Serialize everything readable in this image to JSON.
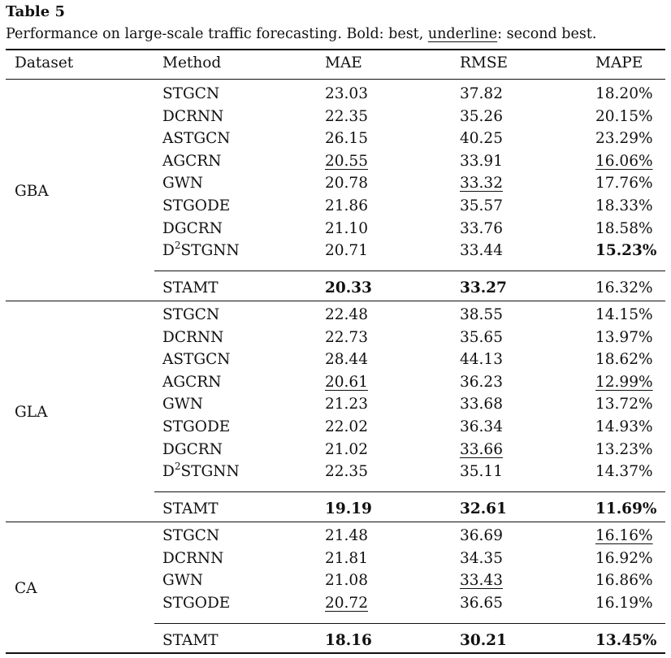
{
  "table": {
    "title": "Table 5",
    "caption_pre": "Performance on large-scale traffic forecasting. Bold: best, ",
    "caption_underline_word": "underline",
    "caption_post": ": second best.",
    "headers": {
      "dataset": "Dataset",
      "method": "Method",
      "mae": "MAE",
      "rmse": "RMSE",
      "mape": "MAPE"
    },
    "groups": [
      {
        "dataset": "GBA",
        "rows": [
          {
            "method": "STGCN",
            "mae": "23.03",
            "rmse": "37.82",
            "mape": "18.20%"
          },
          {
            "method": "DCRNN",
            "mae": "22.35",
            "rmse": "35.26",
            "mape": "20.15%"
          },
          {
            "method": "ASTGCN",
            "mae": "26.15",
            "rmse": "40.25",
            "mape": "23.29%"
          },
          {
            "method": "AGCRN",
            "mae": "20.55",
            "rmse": "33.91",
            "mape": "16.06%",
            "mae_style": "second",
            "mape_style": "second"
          },
          {
            "method": "GWN",
            "mae": "20.78",
            "rmse": "33.32",
            "mape": "17.76%",
            "rmse_style": "second"
          },
          {
            "method": "STGODE",
            "mae": "21.86",
            "rmse": "35.57",
            "mape": "18.33%"
          },
          {
            "method": "DGCRN",
            "mae": "21.10",
            "rmse": "33.76",
            "mape": "18.58%"
          },
          {
            "method": "D",
            "method_sup": "2",
            "method_suffix": "STGNN",
            "mae": "20.71",
            "rmse": "33.44",
            "mape": "15.23%",
            "mape_style": "best"
          }
        ],
        "ours": {
          "method": "STAMT",
          "mae": "20.33",
          "rmse": "33.27",
          "mape": "16.32%",
          "mae_style": "best",
          "rmse_style": "best"
        }
      },
      {
        "dataset": "GLA",
        "rows": [
          {
            "method": "STGCN",
            "mae": "22.48",
            "rmse": "38.55",
            "mape": "14.15%"
          },
          {
            "method": "DCRNN",
            "mae": "22.73",
            "rmse": "35.65",
            "mape": "13.97%"
          },
          {
            "method": "ASTGCN",
            "mae": "28.44",
            "rmse": "44.13",
            "mape": "18.62%"
          },
          {
            "method": "AGCRN",
            "mae": "20.61",
            "rmse": "36.23",
            "mape": "12.99%",
            "mae_style": "second",
            "mape_style": "second"
          },
          {
            "method": "GWN",
            "mae": "21.23",
            "rmse": "33.68",
            "mape": "13.72%"
          },
          {
            "method": "STGODE",
            "mae": "22.02",
            "rmse": "36.34",
            "mape": "14.93%"
          },
          {
            "method": "DGCRN",
            "mae": "21.02",
            "rmse": "33.66",
            "mape": "13.23%",
            "rmse_style": "second"
          },
          {
            "method": "D",
            "method_sup": "2",
            "method_suffix": "STGNN",
            "mae": "22.35",
            "rmse": "35.11",
            "mape": "14.37%"
          }
        ],
        "ours": {
          "method": "STAMT",
          "mae": "19.19",
          "rmse": "32.61",
          "mape": "11.69%",
          "mae_style": "best",
          "rmse_style": "best",
          "mape_style": "best"
        }
      },
      {
        "dataset": "CA",
        "rows": [
          {
            "method": "STGCN",
            "mae": "21.48",
            "rmse": "36.69",
            "mape": "16.16%",
            "mape_style": "second"
          },
          {
            "method": "DCRNN",
            "mae": "21.81",
            "rmse": "34.35",
            "mape": "16.92%"
          },
          {
            "method": "GWN",
            "mae": "21.08",
            "rmse": "33.43",
            "mape": "16.86%",
            "rmse_style": "second"
          },
          {
            "method": "STGODE",
            "mae": "20.72",
            "rmse": "36.65",
            "mape": "16.19%",
            "mae_style": "second"
          }
        ],
        "ours": {
          "method": "STAMT",
          "mae": "18.16",
          "rmse": "30.21",
          "mape": "13.45%",
          "mae_style": "best",
          "rmse_style": "best",
          "mape_style": "best"
        }
      }
    ]
  }
}
